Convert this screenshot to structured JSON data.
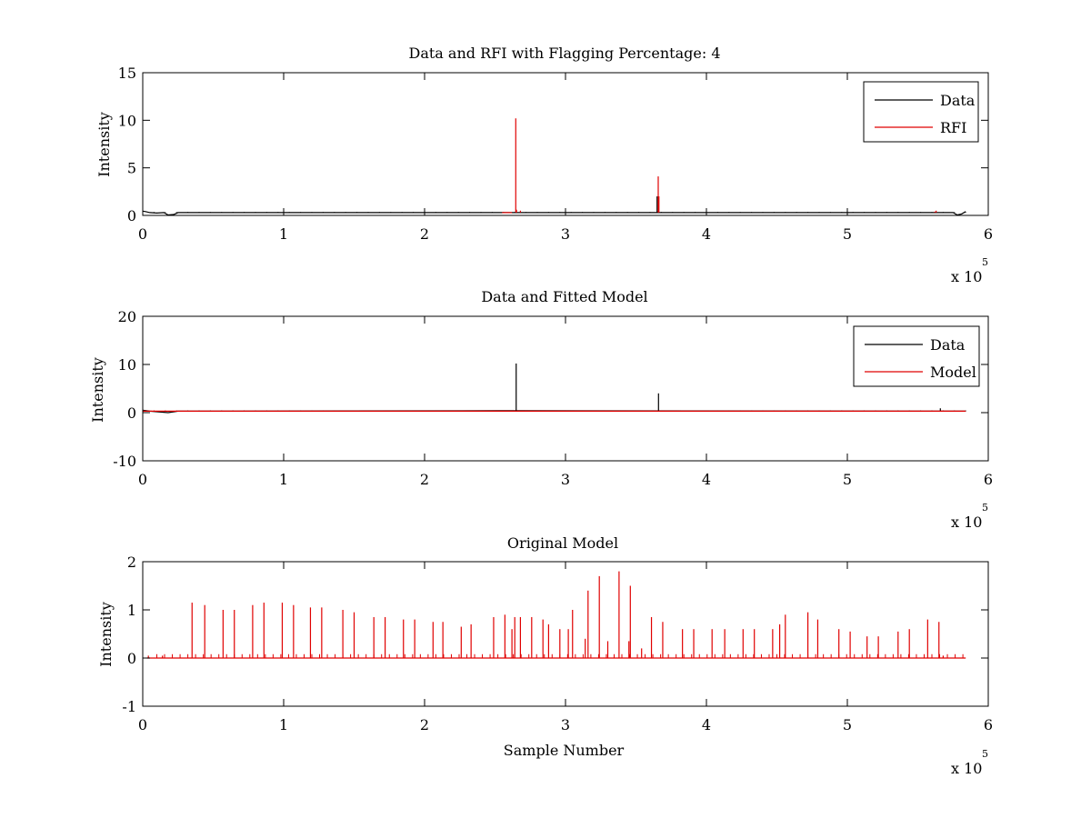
{
  "figure": {
    "background": "#ffffff"
  },
  "chart_data": [
    {
      "type": "line",
      "title": "Data and RFI with Flagging Percentage: 4",
      "xlabel": "",
      "ylabel": "Intensity",
      "xlim": [
        0,
        600000
      ],
      "ylim": [
        0,
        15
      ],
      "xticks": [
        0,
        100000,
        200000,
        300000,
        400000,
        500000,
        600000
      ],
      "xtick_labels": [
        "0",
        "1",
        "2",
        "3",
        "4",
        "5",
        "6"
      ],
      "yticks": [
        0,
        5,
        10,
        15
      ],
      "ytick_labels": [
        "0",
        "5",
        "10",
        "15"
      ],
      "x_multiplier_base": "x 10",
      "x_multiplier_exp": "5",
      "legend": {
        "placement": "top-right"
      },
      "series": [
        {
          "name": "Data",
          "color": "#000000",
          "style": "spike",
          "baseline": 0.3,
          "x_range": [
            0,
            584000
          ],
          "points": [
            [
              0,
              0.45
            ],
            [
              2000,
              0.4
            ],
            [
              5000,
              0.3
            ],
            [
              10000,
              0.25
            ],
            [
              15000,
              0.3
            ],
            [
              18000,
              0.05
            ],
            [
              22000,
              0.1
            ],
            [
              25000,
              0.3
            ],
            [
              575000,
              0.3
            ],
            [
              578000,
              0.05
            ],
            [
              581000,
              0.15
            ],
            [
              584000,
              0.4
            ]
          ],
          "spikes": [
            [
              265000,
              0.5
            ],
            [
              365000,
              2.0
            ],
            [
              366000,
              1.5
            ]
          ],
          "minor_spikes": {
            "start": 8000,
            "step": 8000,
            "height": 0.36
          }
        },
        {
          "name": "RFI",
          "color": "#e00000",
          "style": "spike",
          "baseline": 0.3,
          "x_range": [
            255000,
            262000
          ],
          "points": [
            [
              255000,
              0.3
            ],
            [
              262000,
              0.3
            ]
          ],
          "spikes": [
            [
              264700,
              10.2
            ],
            [
              265200,
              0.6
            ],
            [
              365800,
              4.1
            ],
            [
              366300,
              2.0
            ],
            [
              268000,
              0.5
            ],
            [
              562000,
              0.4
            ],
            [
              563000,
              0.5
            ]
          ],
          "minor_spikes": null
        }
      ]
    },
    {
      "type": "line",
      "title": "Data and Fitted Model",
      "xlabel": "",
      "ylabel": "Intensity",
      "xlim": [
        0,
        600000
      ],
      "ylim": [
        -10,
        20
      ],
      "xticks": [
        0,
        100000,
        200000,
        300000,
        400000,
        500000,
        600000
      ],
      "xtick_labels": [
        "0",
        "1",
        "2",
        "3",
        "4",
        "5",
        "6"
      ],
      "yticks": [
        -10,
        0,
        10,
        20
      ],
      "ytick_labels": [
        "-10",
        "0",
        "10",
        "20"
      ],
      "x_multiplier_base": "x 10",
      "x_multiplier_exp": "5",
      "legend": {
        "placement": "top-right"
      },
      "series": [
        {
          "name": "Data",
          "color": "#000000",
          "style": "spike",
          "baseline": 0.3,
          "x_range": [
            0,
            584000
          ],
          "points": [
            [
              0,
              0.5
            ],
            [
              5000,
              0.3
            ],
            [
              18000,
              0.0
            ],
            [
              25000,
              0.3
            ],
            [
              254000,
              0.4
            ],
            [
              263000,
              0.4
            ],
            [
              584000,
              0.3
            ]
          ],
          "spikes": [
            [
              265000,
              10.2
            ],
            [
              366000,
              4.0
            ],
            [
              566000,
              0.9
            ]
          ],
          "minor_spikes": {
            "start": 8000,
            "step": 8000,
            "height": 0.45
          }
        },
        {
          "name": "Model",
          "color": "#e00000",
          "style": "line",
          "baseline": 0.3,
          "x_range": [
            0,
            584000
          ],
          "points": [
            [
              0,
              0.3
            ],
            [
              584000,
              0.3
            ]
          ],
          "spikes": [],
          "minor_spikes": null
        }
      ]
    },
    {
      "type": "line",
      "title": "Original Model",
      "xlabel": "Sample Number",
      "ylabel": "Intensity",
      "xlim": [
        0,
        600000
      ],
      "ylim": [
        -1,
        2
      ],
      "xticks": [
        0,
        100000,
        200000,
        300000,
        400000,
        500000,
        600000
      ],
      "xtick_labels": [
        "0",
        "1",
        "2",
        "3",
        "4",
        "5",
        "6"
      ],
      "yticks": [
        -1,
        0,
        1,
        2
      ],
      "ytick_labels": [
        "-1",
        "0",
        "1",
        "2"
      ],
      "x_multiplier_base": "x 10",
      "x_multiplier_exp": "5",
      "legend": null,
      "series": [
        {
          "name": "",
          "color": "#e00000",
          "style": "spike",
          "baseline": 0.0,
          "x_range": [
            3000,
            584000
          ],
          "points": [
            [
              3000,
              0.0
            ],
            [
              584000,
              0.0
            ]
          ],
          "spikes": [
            [
              4000,
              0.05
            ],
            [
              14000,
              0.05
            ],
            [
              35000,
              1.15
            ],
            [
              44000,
              1.1
            ],
            [
              57000,
              1.0
            ],
            [
              65000,
              1.0
            ],
            [
              78000,
              1.1
            ],
            [
              86000,
              1.15
            ],
            [
              99000,
              1.15
            ],
            [
              107000,
              1.1
            ],
            [
              119000,
              1.05
            ],
            [
              127000,
              1.05
            ],
            [
              142000,
              1.0
            ],
            [
              150000,
              0.95
            ],
            [
              164000,
              0.85
            ],
            [
              172000,
              0.85
            ],
            [
              185000,
              0.8
            ],
            [
              193000,
              0.8
            ],
            [
              206000,
              0.75
            ],
            [
              213000,
              0.75
            ],
            [
              226000,
              0.65
            ],
            [
              233000,
              0.7
            ],
            [
              249000,
              0.85
            ],
            [
              257000,
              0.9
            ],
            [
              262000,
              0.6
            ],
            [
              264000,
              0.85
            ],
            [
              268000,
              0.85
            ],
            [
              276000,
              0.85
            ],
            [
              284000,
              0.8
            ],
            [
              288000,
              0.7
            ],
            [
              296000,
              0.6
            ],
            [
              302000,
              0.6
            ],
            [
              314000,
              0.4
            ],
            [
              330000,
              0.35
            ],
            [
              345000,
              0.35
            ],
            [
              305000,
              1.0
            ],
            [
              316000,
              1.4
            ],
            [
              324000,
              1.7
            ],
            [
              338000,
              1.8
            ],
            [
              346000,
              1.5
            ],
            [
              354000,
              0.2
            ],
            [
              361000,
              0.85
            ],
            [
              369000,
              0.75
            ],
            [
              383000,
              0.6
            ],
            [
              391000,
              0.6
            ],
            [
              404000,
              0.6
            ],
            [
              413000,
              0.6
            ],
            [
              426000,
              0.6
            ],
            [
              434000,
              0.6
            ],
            [
              447000,
              0.6
            ],
            [
              452000,
              0.7
            ],
            [
              456000,
              0.9
            ],
            [
              472000,
              0.95
            ],
            [
              479000,
              0.8
            ],
            [
              494000,
              0.6
            ],
            [
              502000,
              0.55
            ],
            [
              514000,
              0.45
            ],
            [
              522000,
              0.45
            ],
            [
              536000,
              0.55
            ],
            [
              544000,
              0.6
            ],
            [
              557000,
              0.8
            ],
            [
              565000,
              0.75
            ],
            [
              568000,
              0.05
            ]
          ],
          "minor_spikes": {
            "start": 10000,
            "step": 5500,
            "height": 0.08
          }
        }
      ]
    }
  ]
}
